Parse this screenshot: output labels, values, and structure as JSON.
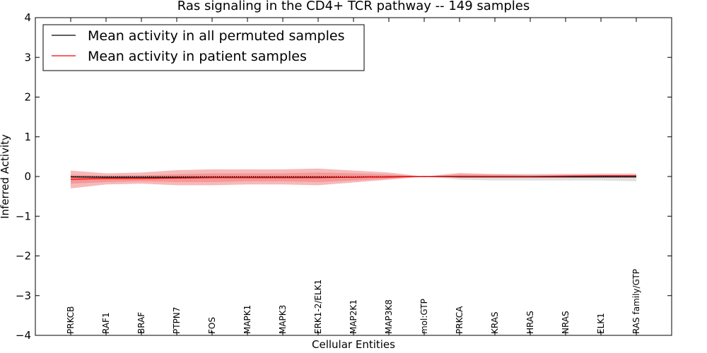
{
  "chart_data": {
    "type": "line",
    "title": "Ras signaling in the CD4+ TCR pathway -- 149 samples",
    "xlabel": "Cellular Entities",
    "ylabel": "Inferred Activity",
    "ylim": [
      -4,
      4
    ],
    "yticks": [
      -4,
      -3,
      -2,
      -1,
      0,
      1,
      2,
      3,
      4
    ],
    "ytick_labels": [
      "−4",
      "−3",
      "−2",
      "−1",
      "0",
      "1",
      "2",
      "3",
      "4"
    ],
    "legend_position": "top-left",
    "categories": [
      "PRKCB",
      "RAF1",
      "BRAF",
      "PTPN7",
      "FOS",
      "MAPK1",
      "MAPK3",
      "ERK1-2/ELK1",
      "MAP2K1",
      "MAP3K8",
      "mol:GTP",
      "PRKCA",
      "KRAS",
      "HRAS",
      "NRAS",
      "ELK1",
      "RAS family/GTP"
    ],
    "series": [
      {
        "name": "Mean activity in all permuted samples",
        "color": "#000000",
        "values": [
          -0.01,
          -0.02,
          -0.02,
          -0.02,
          -0.02,
          -0.02,
          -0.02,
          -0.02,
          -0.02,
          -0.01,
          0.0,
          -0.01,
          -0.01,
          -0.01,
          -0.01,
          -0.01,
          -0.01
        ],
        "band_lower": [
          -0.02,
          -0.03,
          -0.03,
          -0.03,
          -0.03,
          -0.03,
          -0.03,
          -0.03,
          -0.03,
          -0.02,
          0.0,
          -0.08,
          -0.1,
          -0.1,
          -0.1,
          -0.1,
          -0.12
        ],
        "band_upper": [
          0.0,
          -0.01,
          -0.01,
          -0.01,
          -0.01,
          -0.01,
          -0.01,
          -0.01,
          -0.01,
          0.0,
          0.0,
          0.05,
          0.06,
          0.07,
          0.07,
          0.08,
          0.08
        ],
        "band_color": "#bbbbbb"
      },
      {
        "name": "Mean activity in patient samples",
        "color": "#ff0000",
        "values": [
          -0.07,
          -0.05,
          -0.05,
          -0.04,
          -0.03,
          -0.03,
          -0.03,
          -0.03,
          -0.02,
          -0.01,
          0.0,
          0.0,
          0.0,
          0.0,
          0.01,
          0.02,
          0.02
        ],
        "band_lower": [
          -0.3,
          -0.2,
          -0.18,
          -0.22,
          -0.22,
          -0.2,
          -0.2,
          -0.22,
          -0.15,
          -0.08,
          0.0,
          -0.02,
          -0.02,
          -0.02,
          -0.01,
          0.0,
          0.0
        ],
        "band_upper": [
          0.15,
          0.08,
          0.1,
          0.16,
          0.18,
          0.18,
          0.18,
          0.2,
          0.15,
          0.1,
          0.0,
          0.09,
          0.06,
          0.04,
          0.05,
          0.05,
          0.05
        ],
        "inner_lower": [
          -0.18,
          -0.14,
          -0.12,
          -0.14,
          -0.14,
          -0.12,
          -0.12,
          -0.14,
          -0.1,
          -0.05,
          0.0,
          -0.01,
          -0.01,
          -0.01,
          0.0,
          0.0,
          0.0
        ],
        "inner_upper": [
          0.05,
          0.02,
          0.03,
          0.06,
          0.08,
          0.08,
          0.08,
          0.1,
          0.08,
          0.05,
          0.0,
          0.05,
          0.03,
          0.02,
          0.03,
          0.03,
          0.03
        ],
        "band_color": "#f08080"
      }
    ]
  }
}
